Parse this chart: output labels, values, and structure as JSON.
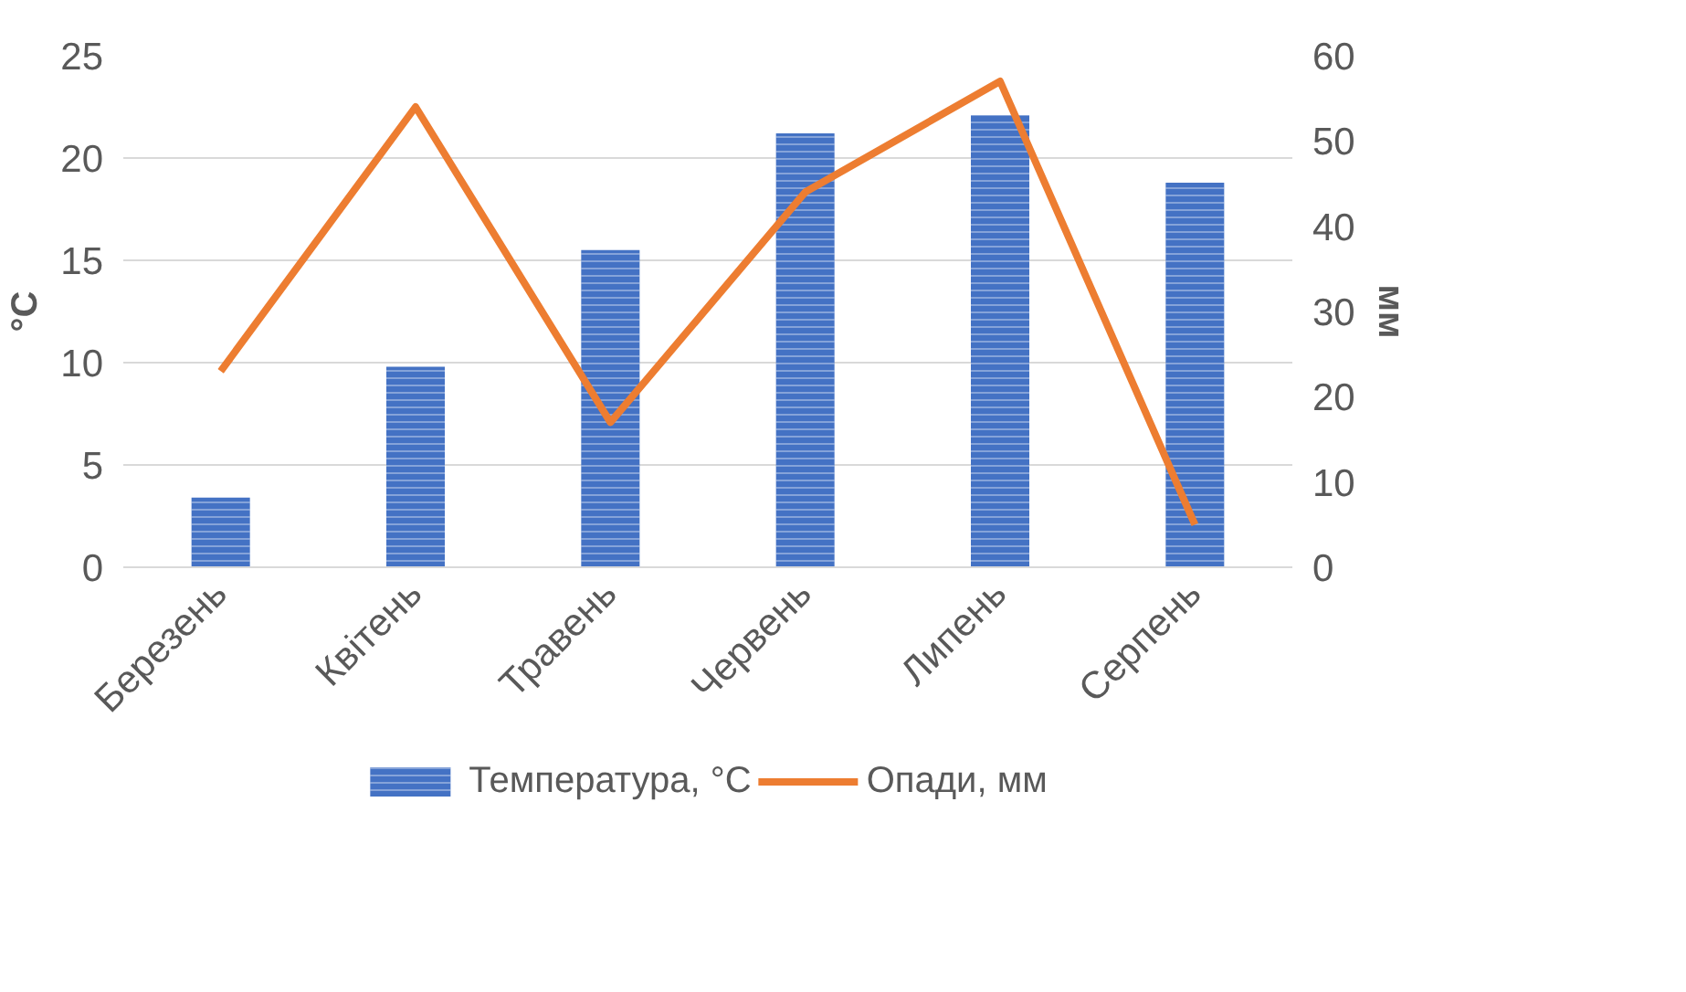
{
  "chart_data": {
    "type": "bar",
    "categories": [
      "Березень",
      "Квітень",
      "Травень",
      "Червень",
      "Липень",
      "Серпень"
    ],
    "series": [
      {
        "name": "Температура, °C",
        "color": "#4472c4",
        "values": [
          3.4,
          9.8,
          15.5,
          21.2,
          22.1,
          18.8
        ]
      },
      {
        "name": "Опади, мм",
        "type": "line",
        "axis": "y2",
        "color": "#ed7d31",
        "values": [
          23,
          54,
          17,
          44,
          57,
          5
        ]
      }
    ],
    "ylabel": "°C",
    "y2label": "мм",
    "ylim": [
      0,
      25
    ],
    "yticks": [
      0,
      5,
      10,
      15,
      20,
      25
    ],
    "y2lim": [
      0,
      60
    ],
    "y2ticks": [
      0,
      10,
      20,
      30,
      40,
      50,
      60
    ],
    "grid": "y",
    "legend": "bottom",
    "marker": "none",
    "line_style": "solid"
  }
}
